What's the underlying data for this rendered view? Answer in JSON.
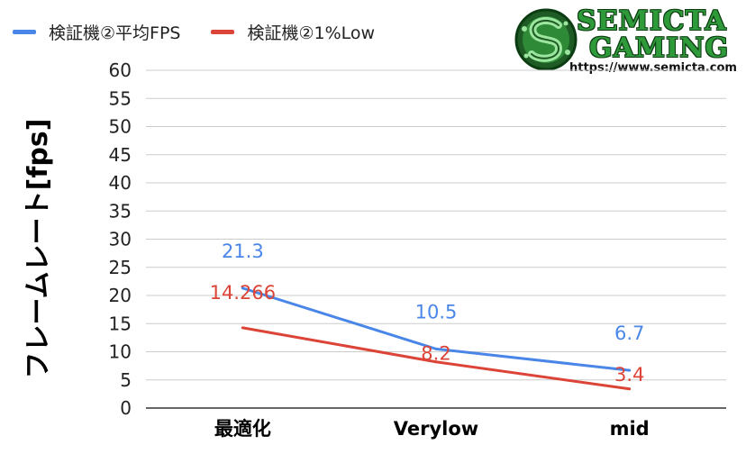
{
  "chart_data": {
    "type": "line",
    "categories": [
      "最適化",
      "Verylow",
      "mid"
    ],
    "series": [
      {
        "name": "検証機②平均FPS",
        "values": [
          21.3,
          10.5,
          6.7
        ],
        "labels": [
          "21.3",
          "10.5",
          "6.7"
        ],
        "color": "#4a86e8"
      },
      {
        "name": "検証機②1%Low",
        "values": [
          14.266,
          8.2,
          3.4
        ],
        "labels": [
          "14.266",
          "8.2",
          "3.4"
        ],
        "color": "#db4437"
      }
    ],
    "ylabel": "フレームレート[fps]",
    "ylim": [
      0,
      60
    ],
    "yticks": [
      0,
      5,
      10,
      15,
      20,
      25,
      30,
      35,
      40,
      45,
      50,
      55,
      60
    ],
    "grid": true,
    "legend_position": "top-left"
  },
  "logo": {
    "line1": "SEMICTA",
    "line2": "GAMING",
    "url": "https://www.semicta.com",
    "color": "#2f9a3a"
  }
}
